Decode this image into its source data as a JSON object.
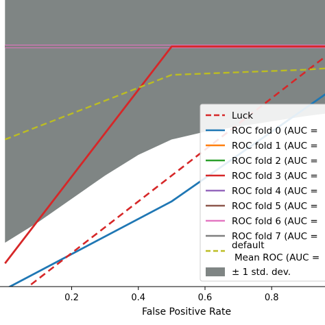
{
  "chart_data": {
    "type": "line",
    "xlabel": "False Positive Rate",
    "ylabel": "",
    "xlim": [
      -0.015,
      0.96
    ],
    "ylim": [
      0.07,
      1.18
    ],
    "xticks": [
      0.2,
      0.4,
      0.6,
      0.8
    ],
    "xtick_labels": [
      "0.2",
      "0.4",
      "0.6",
      "0.8"
    ],
    "grid": false,
    "legend_position": "lower-right",
    "colors": {
      "luck": "#d62728",
      "fold0": "#1f77b4",
      "fold1": "#ff7f0e",
      "fold2": "#2ca02c",
      "fold3": "#d62728",
      "fold4": "#9467bd",
      "fold5": "#8c564b",
      "fold6": "#e377c2",
      "fold7": "#7f7f7f",
      "mean": "#bcbd22",
      "std": "#7f8584"
    },
    "series": [
      {
        "name": "Luck",
        "style": "dashed",
        "color": "#d62728",
        "x": [
          0,
          1
        ],
        "y": [
          0,
          1
        ]
      },
      {
        "name": "ROC fold 0 (AUC =",
        "color": "#1f77b4",
        "x": [
          0,
          0.5,
          1
        ],
        "y": [
          0.06,
          0.4,
          0.85
        ]
      },
      {
        "name": "ROC fold 1 (AUC =",
        "color": "#ff7f0e",
        "x": [
          0,
          1
        ],
        "y": [
          1,
          1
        ]
      },
      {
        "name": "ROC fold 2 (AUC =",
        "color": "#2ca02c",
        "x": [
          0,
          1
        ],
        "y": [
          1,
          1
        ]
      },
      {
        "name": "ROC fold 3 (AUC =",
        "color": "#d62728",
        "x": [
          0,
          0.5,
          1
        ],
        "y": [
          0.16,
          1,
          1
        ]
      },
      {
        "name": "ROC fold 4 (AUC =",
        "color": "#9467bd",
        "x": [
          0,
          1
        ],
        "y": [
          1,
          1
        ]
      },
      {
        "name": "ROC fold 5 (AUC =",
        "color": "#8c564b",
        "x": [
          0,
          1
        ],
        "y": [
          1,
          1
        ]
      },
      {
        "name": "ROC fold 6 (AUC =",
        "color": "#e377c2",
        "x": [
          0,
          1
        ],
        "y": [
          1,
          1
        ]
      },
      {
        "name": "ROC fold 7 (AUC =",
        "color": "#7f7f7f",
        "x": [
          0,
          1
        ],
        "y": [
          1,
          1
        ]
      }
    ],
    "mean": {
      "label_line1": "default",
      "label_line2": "Mean ROC (AUC =",
      "color": "#bcbd22",
      "x": [
        0,
        0.1,
        0.2,
        0.3,
        0.4,
        0.5,
        0.6,
        0.7,
        0.8,
        0.9,
        0.96
      ],
      "y": [
        0.64,
        0.69,
        0.74,
        0.79,
        0.84,
        0.89,
        0.895,
        0.9,
        0.905,
        0.91,
        0.915
      ]
    },
    "std_band": {
      "label": "± 1 std. dev.",
      "color": "#7f8584",
      "x": [
        0,
        0.1,
        0.2,
        0.3,
        0.4,
        0.5,
        0.6,
        0.7,
        0.8,
        0.9,
        0.96
      ],
      "upper": [
        1.18,
        1.18,
        1.18,
        1.18,
        1.18,
        1.18,
        1.18,
        1.18,
        1.18,
        1.18,
        1.18
      ],
      "lower": [
        0.24,
        0.32,
        0.41,
        0.5,
        0.58,
        0.64,
        0.67,
        0.69,
        0.71,
        0.73,
        0.74
      ]
    }
  }
}
